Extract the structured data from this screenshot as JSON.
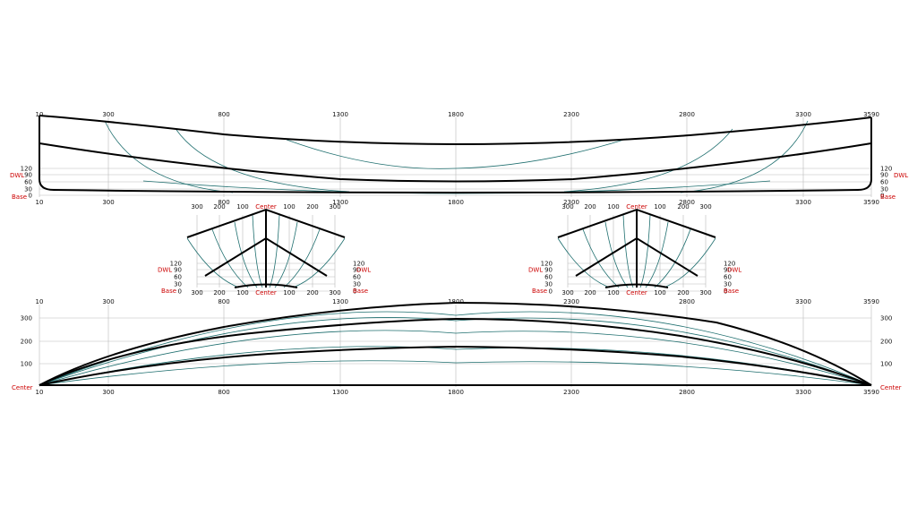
{
  "profile": {
    "x_labels": [
      "10",
      "300",
      "800",
      "1300",
      "1800",
      "2300",
      "2800",
      "3300",
      "3590"
    ],
    "levels": [
      {
        "value": 120,
        "label": "120"
      },
      {
        "value": 90,
        "label": "90"
      },
      {
        "value": 60,
        "label": "60"
      },
      {
        "value": 30,
        "label": "30"
      },
      {
        "value": 0,
        "label": "0"
      }
    ],
    "dwl_label": "DWL",
    "base_label": "Base"
  },
  "body_plan_left": {
    "offset_labels": [
      "300",
      "200",
      "100",
      "Center",
      "100",
      "200",
      "300"
    ],
    "levels": [
      "120",
      "90",
      "60",
      "30",
      "0"
    ],
    "dwl_label": "DWL",
    "base_label": "Base"
  },
  "body_plan_right": {
    "offset_labels": [
      "300",
      "200",
      "100",
      "Center",
      "100",
      "200",
      "300"
    ],
    "levels": [
      "120",
      "90",
      "60",
      "30",
      "0"
    ],
    "dwl_label": "DWL",
    "base_label": "Base"
  },
  "plan": {
    "x_labels": [
      "10",
      "300",
      "800",
      "1300",
      "1800",
      "2300",
      "2800",
      "3300",
      "3590"
    ],
    "y_labels": [
      "300",
      "200",
      "100"
    ],
    "center_label": "Center"
  },
  "colors": {
    "hull_line": "#000000",
    "section_line": "#1f6f6f",
    "grid_line": "#b9b9b9",
    "label_red": "#cc0000"
  }
}
